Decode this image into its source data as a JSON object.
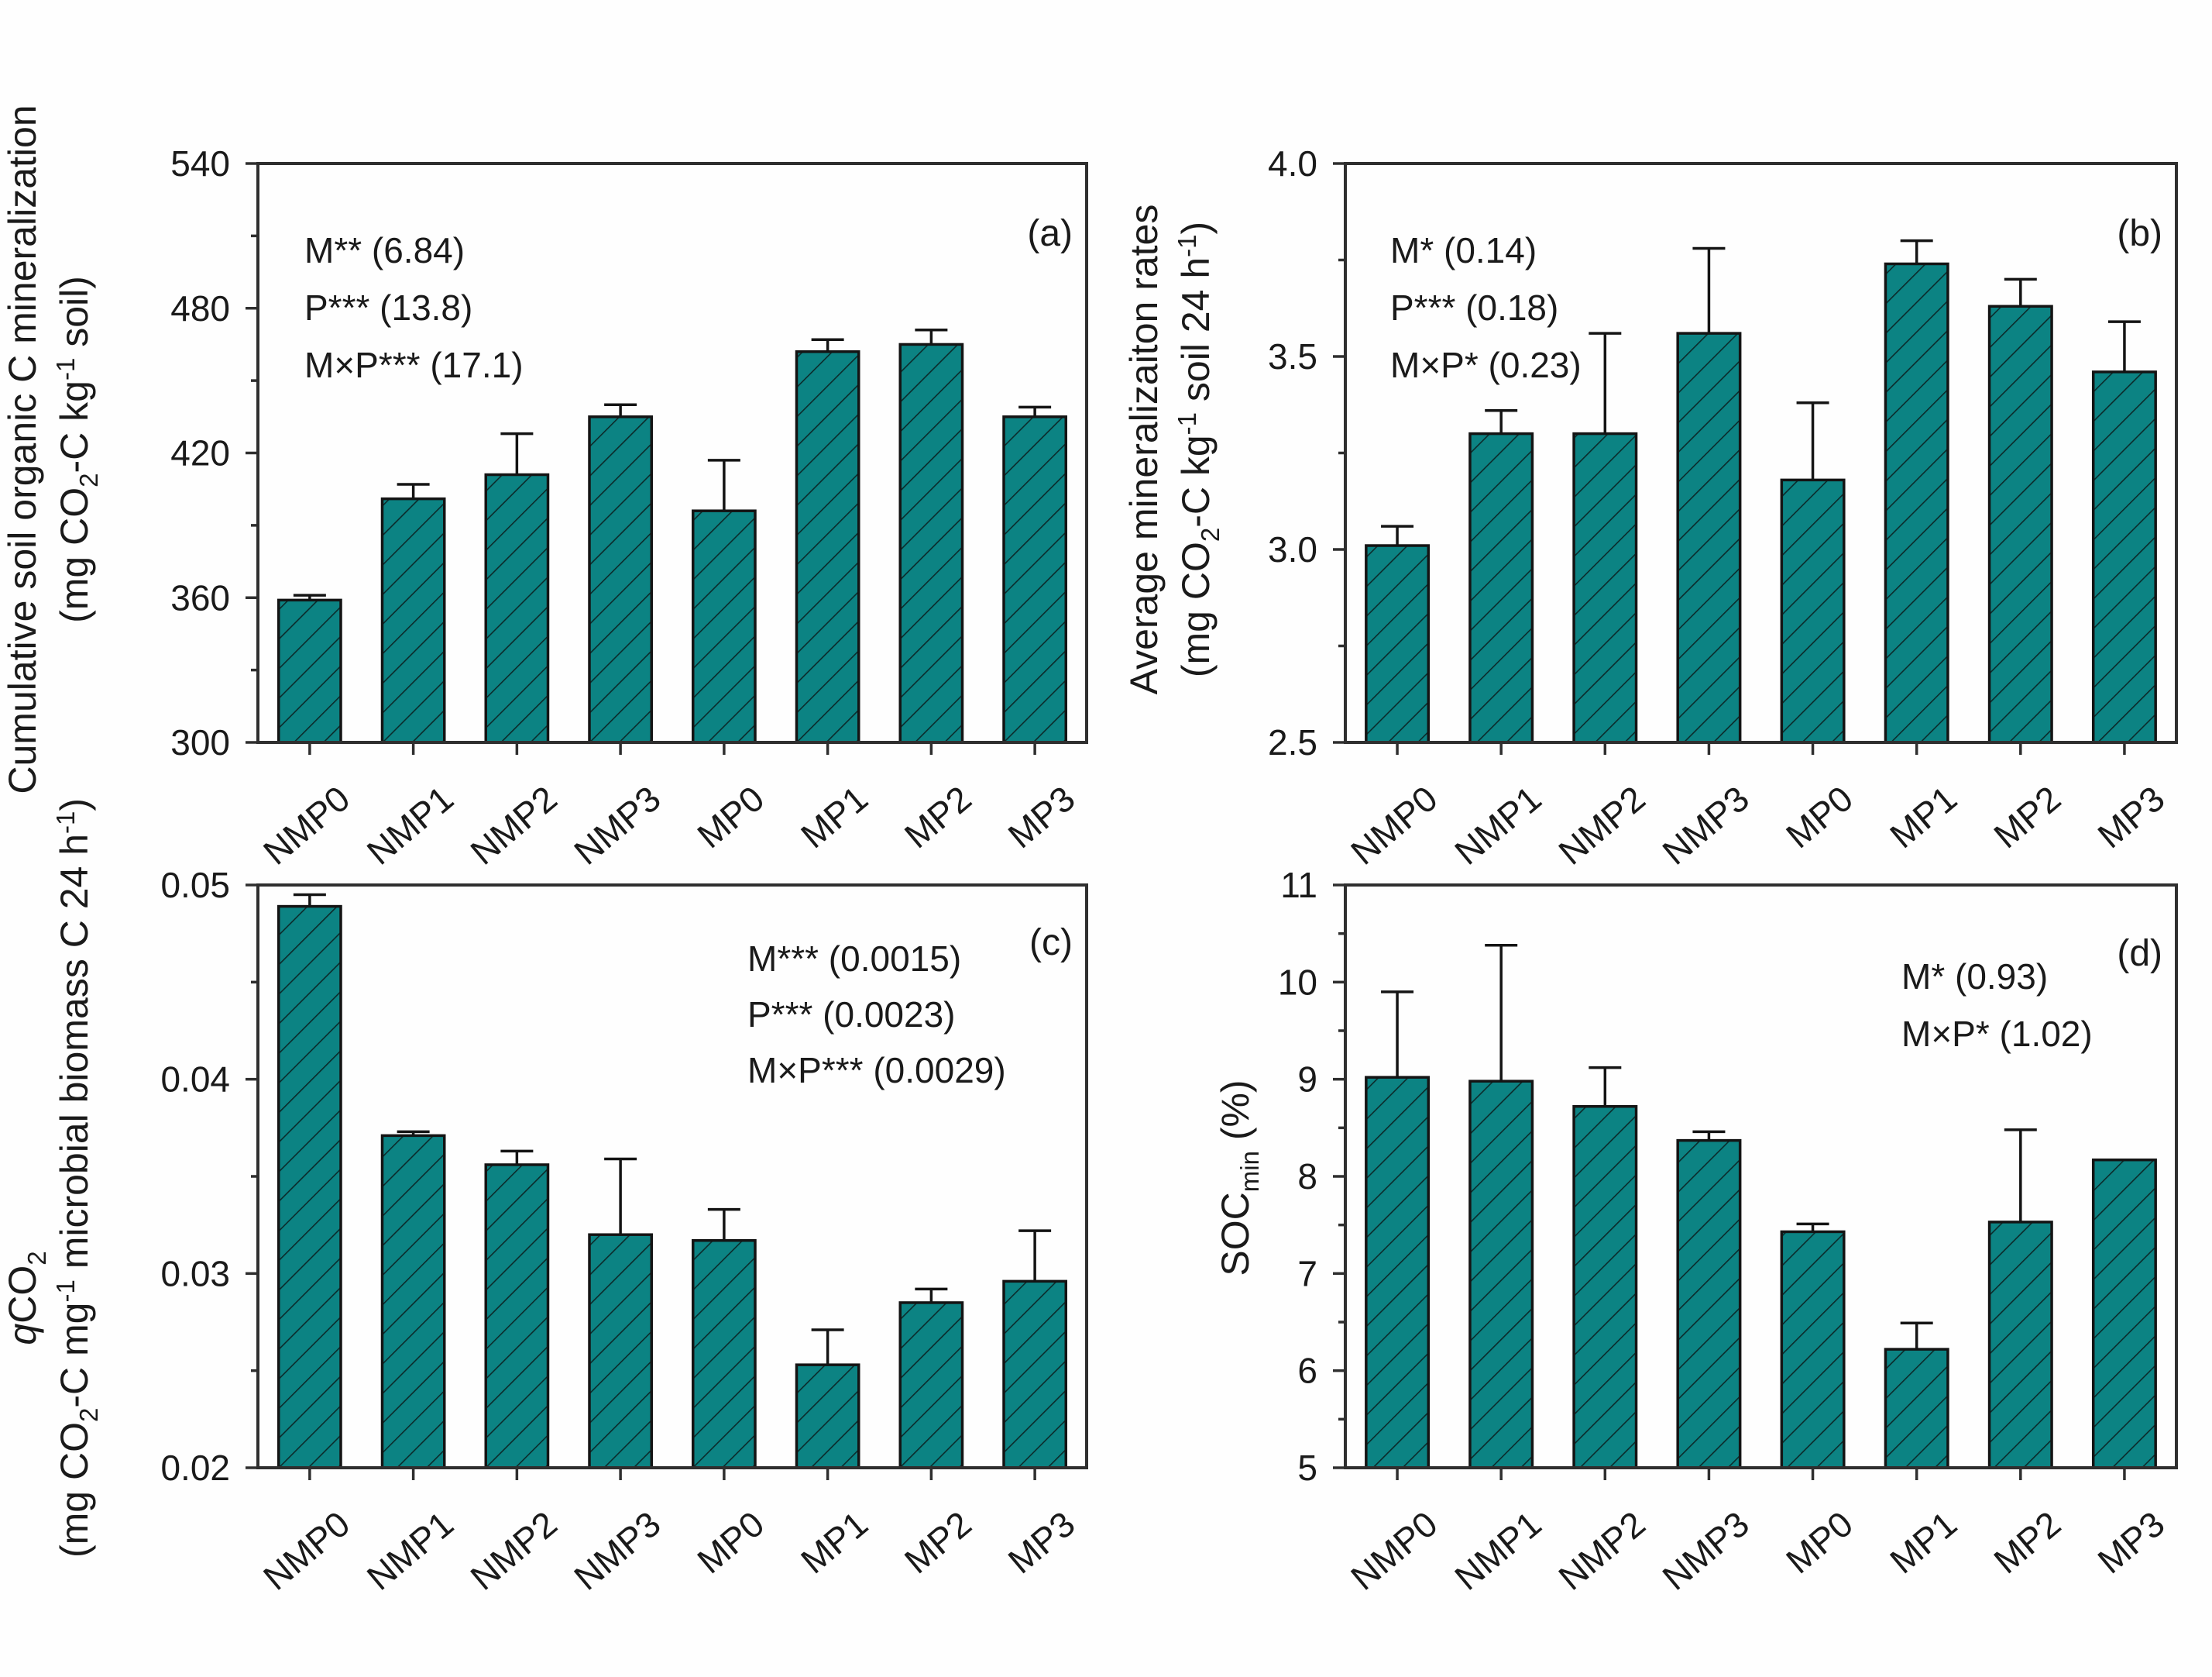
{
  "figure": {
    "style": {
      "background": "#fefefe",
      "bar_fill": "#0c8383",
      "hatch_color": "#0b2b2b",
      "bar_stroke": "#141414",
      "axis_color": "#2f2f2f",
      "text_color": "#1a1a1a"
    }
  },
  "chart_data": [
    {
      "panel": "a",
      "type": "bar",
      "letter": "(a)",
      "categories": [
        "NMP0",
        "NMP1",
        "NMP2",
        "NMP3",
        "MP0",
        "MP1",
        "MP2",
        "MP3"
      ],
      "values": [
        359,
        401,
        411,
        435,
        396,
        462,
        465,
        435
      ],
      "errors_plus": [
        2,
        6,
        17,
        5,
        21,
        5,
        6,
        4
      ],
      "ylim": [
        300,
        540
      ],
      "yticks": [
        300,
        360,
        420,
        480,
        540
      ],
      "ytick_labels": [
        "300",
        "360",
        "420",
        "480",
        "540"
      ],
      "minor_ticks": [
        330,
        390,
        450,
        510
      ],
      "grid": false,
      "annotation_lines": [
        "M** (6.84)",
        "P*** (13.8)",
        "M×P*** (17.1)"
      ],
      "ylabel_outer": [
        {
          "t": "Cumulative soil organic C mineralization"
        }
      ],
      "ylabel_inner": [
        {
          "t": "(mg CO"
        },
        {
          "t": "2",
          "s": "sub"
        },
        {
          "t": "-C kg"
        },
        {
          "t": "-1",
          "s": "sup"
        },
        {
          "t": " soil)"
        }
      ]
    },
    {
      "panel": "b",
      "type": "bar",
      "letter": "(b)",
      "categories": [
        "NMP0",
        "NMP1",
        "NMP2",
        "NMP3",
        "MP0",
        "MP1",
        "MP2",
        "MP3"
      ],
      "values": [
        3.01,
        3.3,
        3.3,
        3.56,
        3.18,
        3.74,
        3.63,
        3.46
      ],
      "errors_plus": [
        0.05,
        0.06,
        0.26,
        0.22,
        0.2,
        0.06,
        0.07,
        0.13
      ],
      "ylim": [
        2.5,
        4.0
      ],
      "yticks": [
        2.5,
        3.0,
        3.5,
        4.0
      ],
      "ytick_labels": [
        "2.5",
        "3.0",
        "3.5",
        "4.0"
      ],
      "minor_ticks": [
        2.75,
        3.25,
        3.75
      ],
      "grid": false,
      "annotation_lines": [
        "M* (0.14)",
        "P*** (0.18)",
        "M×P* (0.23)"
      ],
      "ylabel_outer": [
        {
          "t": "Average mineralizaiton rates"
        }
      ],
      "ylabel_inner": [
        {
          "t": "(mg CO"
        },
        {
          "t": "2",
          "s": "sub"
        },
        {
          "t": "-C kg"
        },
        {
          "t": "-1",
          "s": "sup"
        },
        {
          "t": " soil 24 h"
        },
        {
          "t": "-1",
          "s": "sup"
        },
        {
          "t": ")"
        }
      ]
    },
    {
      "panel": "c",
      "type": "bar",
      "letter": "(c)",
      "categories": [
        "NMP0",
        "NMP1",
        "NMP2",
        "NMP3",
        "MP0",
        "MP1",
        "MP2",
        "MP3"
      ],
      "values": [
        0.0489,
        0.0371,
        0.0356,
        0.032,
        0.0317,
        0.0253,
        0.0285,
        0.0296
      ],
      "errors_plus": [
        0.0006,
        0.0002,
        0.0007,
        0.0039,
        0.0016,
        0.0018,
        0.0007,
        0.0026
      ],
      "ylim": [
        0.02,
        0.05
      ],
      "yticks": [
        0.02,
        0.03,
        0.04,
        0.05
      ],
      "ytick_labels": [
        "0.02",
        "0.03",
        "0.04",
        "0.05"
      ],
      "minor_ticks": [
        0.025,
        0.035,
        0.045
      ],
      "grid": false,
      "annotation_lines": [
        "M*** (0.0015)",
        "P*** (0.0023)",
        "M×P*** (0.0029)"
      ],
      "ylabel_outer": [
        {
          "t": "q",
          "i": true
        },
        {
          "t": "CO"
        },
        {
          "t": "2",
          "s": "sub"
        }
      ],
      "ylabel_inner": [
        {
          "t": "(mg CO"
        },
        {
          "t": "2",
          "s": "sub"
        },
        {
          "t": "-C mg"
        },
        {
          "t": "-1",
          "s": "sup"
        },
        {
          "t": " microbial biomass C 24 h"
        },
        {
          "t": "-1",
          "s": "sup"
        },
        {
          "t": ")"
        }
      ]
    },
    {
      "panel": "d",
      "type": "bar",
      "letter": "(d)",
      "categories": [
        "NMP0",
        "NMP1",
        "NMP2",
        "NMP3",
        "MP0",
        "MP1",
        "MP2",
        "MP3"
      ],
      "values": [
        9.02,
        8.98,
        8.72,
        8.37,
        7.43,
        6.22,
        7.53,
        8.17
      ],
      "errors_plus": [
        0.88,
        1.4,
        0.4,
        0.09,
        0.08,
        0.27,
        0.95,
        0
      ],
      "ylim": [
        5,
        11
      ],
      "yticks": [
        5,
        6,
        7,
        8,
        9,
        10,
        11
      ],
      "ytick_labels": [
        "5",
        "6",
        "7",
        "8",
        "9",
        "10",
        "11"
      ],
      "minor_ticks": [
        5.5,
        6.5,
        7.5,
        8.5,
        9.5,
        10.5
      ],
      "grid": false,
      "annotation_lines": [
        "M* (0.93)",
        "M×P* (1.02)"
      ],
      "ylabel_outer": [
        {
          "t": "SOC"
        },
        {
          "t": "min",
          "s": "sub"
        },
        {
          "t": " (%)"
        }
      ],
      "ylabel_inner": null
    }
  ]
}
